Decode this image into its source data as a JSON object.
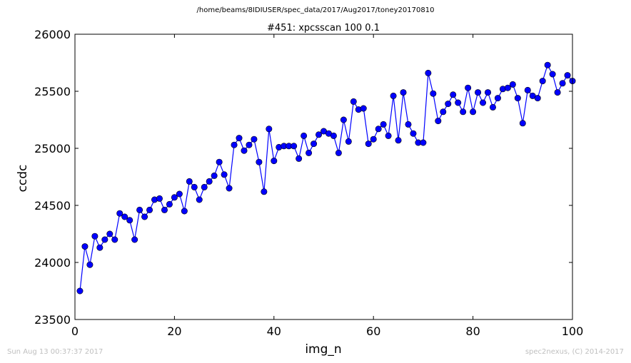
{
  "page": {
    "path_title": "/home/beams/8IDIUSER/spec_data/2017/Aug2017/toney20170810",
    "footer_timestamp": "Sun Aug 13 00:37:37 2017",
    "footer_credit": "spec2nexus, (C) 2014-2017"
  },
  "chart_data": {
    "type": "line",
    "title": "#451: xpcsscan 100 0.1",
    "xlabel": "img_n",
    "ylabel": "ccdc",
    "xlim": [
      0,
      100
    ],
    "ylim": [
      23500,
      26000
    ],
    "xticks": [
      0,
      20,
      40,
      60,
      80,
      100
    ],
    "yticks": [
      23500,
      24000,
      24500,
      25000,
      25500,
      26000
    ],
    "grid": false,
    "marker": "circle",
    "series": [
      {
        "color": "#0000ff",
        "x": [
          1,
          2,
          3,
          4,
          5,
          6,
          7,
          8,
          9,
          10,
          11,
          12,
          13,
          14,
          15,
          16,
          17,
          18,
          19,
          20,
          21,
          22,
          23,
          24,
          25,
          26,
          27,
          28,
          29,
          30,
          31,
          32,
          33,
          34,
          35,
          36,
          37,
          38,
          39,
          40,
          41,
          42,
          43,
          44,
          45,
          46,
          47,
          48,
          49,
          50,
          51,
          52,
          53,
          54,
          55,
          56,
          57,
          58,
          59,
          60,
          61,
          62,
          63,
          64,
          65,
          66,
          67,
          68,
          69,
          70,
          71,
          72,
          73,
          74,
          75,
          76,
          77,
          78,
          79,
          80,
          81,
          82,
          83,
          84,
          85,
          86,
          87,
          88,
          89,
          90,
          91,
          92,
          93,
          94,
          95,
          96,
          97,
          98,
          99,
          100
        ],
        "y": [
          23750,
          24140,
          23980,
          24230,
          24130,
          24200,
          24250,
          24200,
          24430,
          24400,
          24370,
          24200,
          24460,
          24400,
          24460,
          24550,
          24560,
          24460,
          24510,
          24570,
          24600,
          24450,
          24710,
          24660,
          24550,
          24660,
          24710,
          24760,
          24880,
          24770,
          24650,
          25030,
          25090,
          24980,
          25030,
          25080,
          24880,
          24620,
          25170,
          24890,
          25010,
          25020,
          25020,
          25020,
          24910,
          25110,
          24960,
          25040,
          25120,
          25150,
          25130,
          25110,
          24960,
          25250,
          25060,
          25410,
          25340,
          25350,
          25040,
          25080,
          25170,
          25210,
          25110,
          25460,
          25070,
          25490,
          25210,
          25130,
          25050,
          25050,
          25660,
          25480,
          25240,
          25320,
          25390,
          25470,
          25400,
          25320,
          25530,
          25320,
          25490,
          25400,
          25490,
          25360,
          25440,
          25520,
          25530,
          25560,
          25440,
          25220,
          25510,
          25460,
          25440,
          25590,
          25730,
          25650,
          25490,
          25570,
          25640,
          25590
        ]
      }
    ]
  }
}
